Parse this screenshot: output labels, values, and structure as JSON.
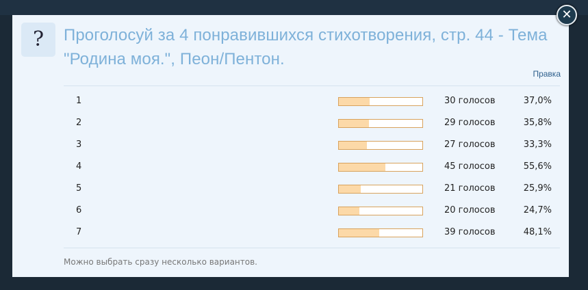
{
  "poll": {
    "title": "Проголосуй за 4 понравившихся стихотворения, стр. 44 - Тема \"Родина моя.\", Пеон/Пентон.",
    "edit_label": "Правка",
    "footer": "Можно выбрать сразу несколько вариантов.",
    "options": [
      {
        "label": "1",
        "votes": "30 голосов",
        "percent": "37,0%",
        "fraction": 0.37
      },
      {
        "label": "2",
        "votes": "29 голосов",
        "percent": "35,8%",
        "fraction": 0.358
      },
      {
        "label": "3",
        "votes": "27 голосов",
        "percent": "33,3%",
        "fraction": 0.333
      },
      {
        "label": "4",
        "votes": "45 голосов",
        "percent": "55,6%",
        "fraction": 0.556
      },
      {
        "label": "5",
        "votes": "21 голосов",
        "percent": "25,9%",
        "fraction": 0.259
      },
      {
        "label": "6",
        "votes": "20 голосов",
        "percent": "24,7%",
        "fraction": 0.247
      },
      {
        "label": "7",
        "votes": "39 голосов",
        "percent": "48,1%",
        "fraction": 0.481
      }
    ]
  },
  "icons": {
    "question": "question-mark-icon",
    "close": "close-icon"
  },
  "colors": {
    "title": "#7eb1d9",
    "bar_fill": "#fcd9a8",
    "bar_border": "#d8a25c",
    "overlay": "#1b2936"
  }
}
